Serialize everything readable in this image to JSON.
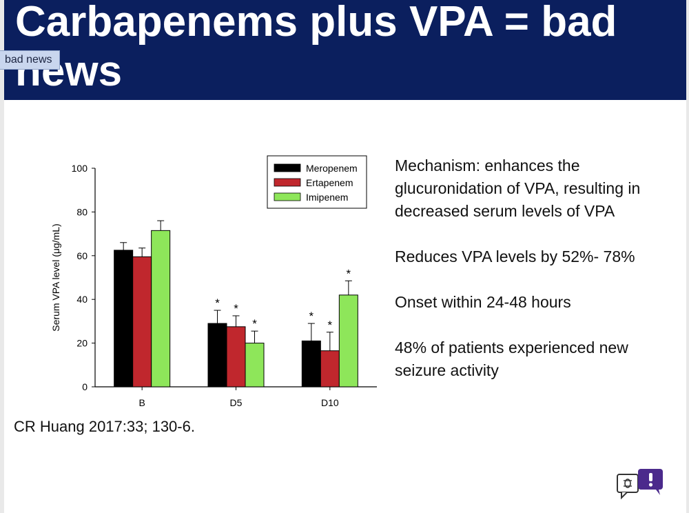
{
  "slide": {
    "title": "Carbapenems plus VPA = bad news",
    "tooltip": "bad news",
    "citation": "CR Huang 2017:33;  130-6.",
    "bullets": [
      "Mechanism:   enhances the glucuronidation of VPA, resulting in decreased serum levels of VPA",
      "Reduces VPA levels by 52%- 78%",
      "Onset within 24-48 hours",
      "48% of patients experienced new seizure activity"
    ],
    "feedback_icon": "feedback-bug-icon"
  },
  "colors": {
    "title_bar": "#0b1f5e",
    "meropenem": "#000000",
    "ertapenem": "#c0272d",
    "imipenem": "#8ee65a"
  },
  "chart_data": {
    "type": "bar",
    "categories": [
      "B",
      "D5",
      "D10"
    ],
    "ylabel": "Serum VPA level (μg/mL)",
    "xlabel": "",
    "ylim": [
      0,
      100
    ],
    "yticks": [
      0,
      20,
      40,
      60,
      80,
      100
    ],
    "legend_position": "top-right",
    "series": [
      {
        "name": "Meropenem",
        "values": [
          62.5,
          29,
          21
        ],
        "errors": [
          3.5,
          6,
          8
        ],
        "significance": [
          "",
          "*",
          "*"
        ]
      },
      {
        "name": "Ertapenem",
        "values": [
          59.5,
          27.5,
          16.5
        ],
        "errors": [
          4,
          5,
          8.5
        ],
        "significance": [
          "",
          "*",
          "*"
        ]
      },
      {
        "name": "Imipenem",
        "values": [
          71.5,
          20,
          42
        ],
        "errors": [
          4.5,
          5.5,
          6.5
        ],
        "significance": [
          "",
          "*",
          "*"
        ]
      }
    ]
  }
}
